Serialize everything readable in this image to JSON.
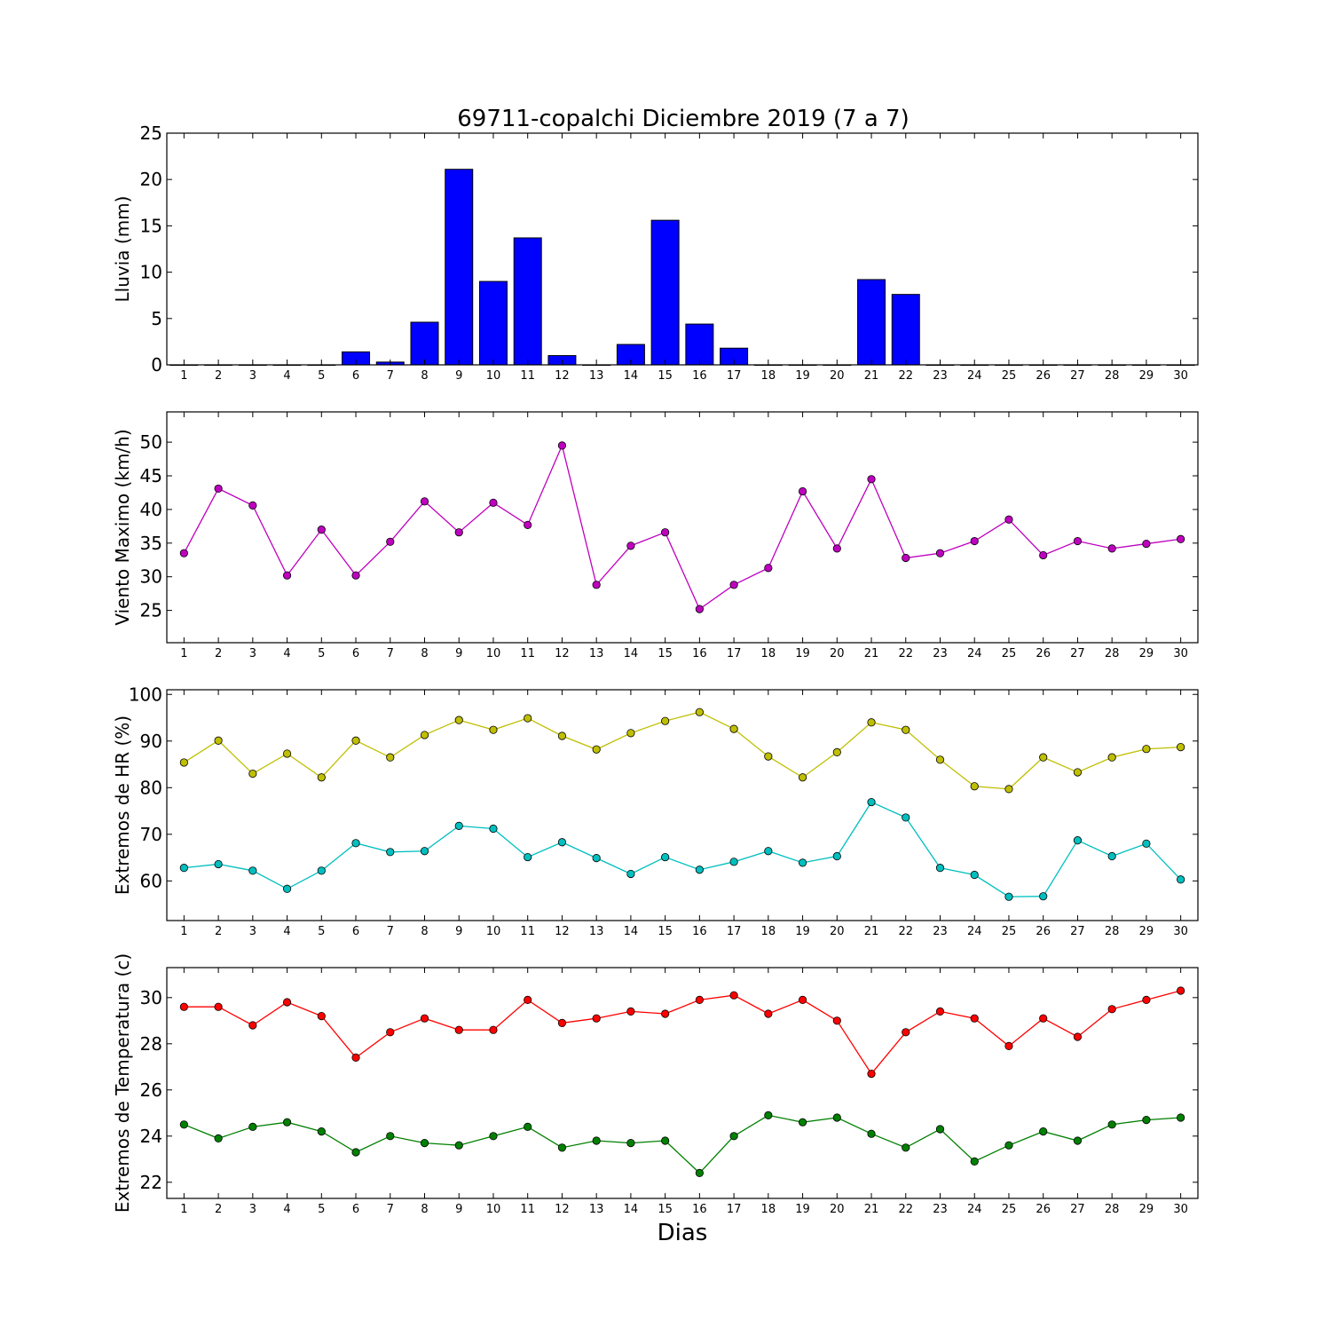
{
  "chart_data": {
    "title": "69711-copalchi Diciembre 2019  (7 a 7)",
    "xlabel": "Dias",
    "x": [
      1,
      2,
      3,
      4,
      5,
      6,
      7,
      8,
      9,
      10,
      11,
      12,
      13,
      14,
      15,
      16,
      17,
      18,
      19,
      20,
      21,
      22,
      23,
      24,
      25,
      26,
      27,
      28,
      29,
      30
    ],
    "xlim": [
      0.5,
      30.5
    ],
    "panels": [
      {
        "id": "lluvia",
        "type": "bar",
        "ylabel": "Lluvia (mm)",
        "ylim": [
          0,
          25
        ],
        "yticks": [
          0,
          5,
          10,
          15,
          20,
          25
        ],
        "series": [
          {
            "color": "#0000ff",
            "values": [
              0,
              0,
              0,
              0,
              0,
              1.4,
              0.3,
              4.6,
              21.1,
              9.0,
              13.7,
              1.0,
              0,
              2.2,
              15.6,
              4.4,
              1.8,
              0,
              0,
              0,
              9.2,
              7.6,
              0,
              0,
              0,
              0,
              0,
              0,
              0,
              0
            ]
          }
        ]
      },
      {
        "id": "viento",
        "type": "line",
        "ylabel": "Viento Maximo (km/h)",
        "ylim": [
          20.2,
          54.5
        ],
        "yticks": [
          25,
          30,
          35,
          40,
          45,
          50
        ],
        "series": [
          {
            "color": "#bf00bf",
            "values": [
              33.5,
              43.1,
              40.6,
              30.2,
              37.0,
              30.2,
              35.2,
              41.2,
              36.6,
              41.0,
              37.7,
              49.5,
              28.8,
              34.6,
              36.6,
              25.2,
              28.8,
              31.3,
              42.7,
              34.2,
              44.5,
              32.8,
              33.5,
              35.3,
              38.5,
              33.2,
              35.3,
              34.2,
              34.9,
              35.6
            ]
          }
        ]
      },
      {
        "id": "hr",
        "type": "line",
        "ylabel": "Extremos de HR (%)",
        "ylim": [
          51.5,
          101
        ],
        "yticks": [
          60,
          70,
          80,
          90,
          100
        ],
        "series": [
          {
            "color": "#bfbf00",
            "values": [
              85.4,
              90.1,
              83.0,
              87.3,
              82.2,
              90.1,
              86.5,
              91.3,
              94.5,
              92.4,
              94.9,
              91.1,
              88.2,
              91.7,
              94.3,
              96.2,
              92.6,
              86.7,
              82.2,
              87.6,
              94.0,
              92.4,
              86.0,
              80.3,
              79.7,
              86.5,
              83.3,
              86.5,
              88.3,
              88.7
            ]
          },
          {
            "color": "#00bfbf",
            "values": [
              62.8,
              63.6,
              62.2,
              58.3,
              62.2,
              68.1,
              66.2,
              66.4,
              71.8,
              71.2,
              65.1,
              68.3,
              64.9,
              61.5,
              65.1,
              62.4,
              64.1,
              66.4,
              63.9,
              65.3,
              76.9,
              73.6,
              62.8,
              61.3,
              56.6,
              56.7,
              68.7,
              65.3,
              68.0,
              60.3
            ]
          }
        ]
      },
      {
        "id": "temp",
        "type": "line",
        "ylabel": "Extremos de Temperatura (c)",
        "ylim": [
          21.3,
          31.3
        ],
        "yticks": [
          22,
          24,
          26,
          28,
          30
        ],
        "series": [
          {
            "color": "#ff0000",
            "values": [
              29.6,
              29.6,
              28.8,
              29.8,
              29.2,
              27.4,
              28.5,
              29.1,
              28.6,
              28.6,
              29.9,
              28.9,
              29.1,
              29.4,
              29.3,
              29.9,
              30.1,
              29.3,
              29.9,
              29.0,
              26.7,
              28.5,
              29.4,
              29.1,
              27.9,
              29.1,
              28.3,
              29.5,
              29.9,
              30.3
            ]
          },
          {
            "color": "#008000",
            "values": [
              24.5,
              23.9,
              24.4,
              24.6,
              24.2,
              23.3,
              24.0,
              23.7,
              23.6,
              24.0,
              24.4,
              23.5,
              23.8,
              23.7,
              23.8,
              22.4,
              24.0,
              24.9,
              24.6,
              24.8,
              24.1,
              23.5,
              24.3,
              22.9,
              23.6,
              24.2,
              23.8,
              24.5,
              24.7,
              24.8
            ]
          }
        ]
      }
    ]
  }
}
